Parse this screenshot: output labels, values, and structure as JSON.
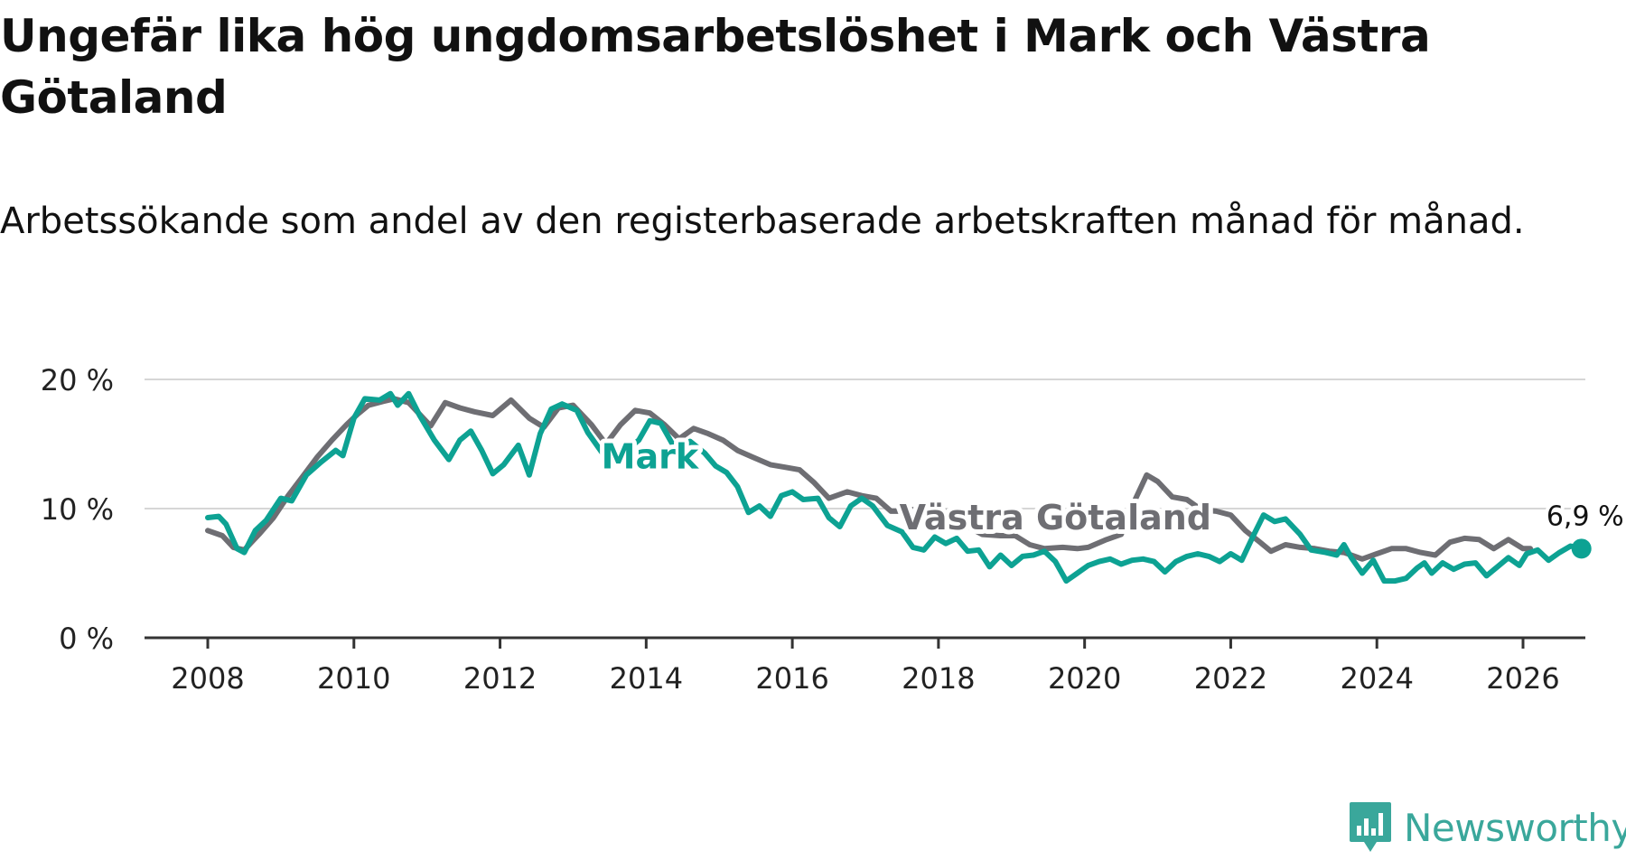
{
  "title": "Ungefär lika hög ungdomsarbetslöshet i Mark och Västra Götaland",
  "subtitle": "Arbetssökande som andel av den registerbaserade arbetskraften månad för månad.",
  "brand": {
    "name": "Newsworthy",
    "logo_icon": "newsworthy-bar-chart-icon",
    "color": "#3aa79b"
  },
  "chart_data": {
    "type": "line",
    "title": "Ungefär lika hög ungdomsarbetslöshet i Mark och Västra Götaland",
    "xlabel": "",
    "ylabel": "",
    "xlim": [
      2007.7,
      2026.9
    ],
    "ylim": [
      0,
      20
    ],
    "x_ticks": [
      2008,
      2010,
      2012,
      2014,
      2016,
      2018,
      2020,
      2022,
      2024,
      2026
    ],
    "x_tick_labels": [
      "2008",
      "2010",
      "2012",
      "2014",
      "2016",
      "2018",
      "2020",
      "2022",
      "2024",
      "2026"
    ],
    "y_ticks": [
      0,
      10,
      20
    ],
    "y_tick_labels": [
      "0 %",
      "10 %",
      "20 %"
    ],
    "grid": true,
    "end_label": "6,9 %",
    "series": [
      {
        "name": "Västra Götaland",
        "label": "Västra Götaland",
        "color": "#6e6e73",
        "label_position": [
          2019.6,
          8.4
        ],
        "points": [
          [
            2008.0,
            8.3
          ],
          [
            2008.2,
            7.9
          ],
          [
            2008.35,
            7.0
          ],
          [
            2008.5,
            6.8
          ],
          [
            2008.7,
            8.0
          ],
          [
            2008.9,
            9.3
          ],
          [
            2009.1,
            11.0
          ],
          [
            2009.3,
            12.5
          ],
          [
            2009.5,
            14.0
          ],
          [
            2009.7,
            15.3
          ],
          [
            2009.9,
            16.5
          ],
          [
            2010.05,
            17.3
          ],
          [
            2010.2,
            18.0
          ],
          [
            2010.4,
            18.3
          ],
          [
            2010.55,
            18.5
          ],
          [
            2010.75,
            18.2
          ],
          [
            2011.05,
            16.4
          ],
          [
            2011.25,
            18.2
          ],
          [
            2011.45,
            17.8
          ],
          [
            2011.65,
            17.5
          ],
          [
            2011.9,
            17.2
          ],
          [
            2012.15,
            18.4
          ],
          [
            2012.4,
            17.0
          ],
          [
            2012.6,
            16.3
          ],
          [
            2012.8,
            17.8
          ],
          [
            2013.0,
            18.0
          ],
          [
            2013.25,
            16.5
          ],
          [
            2013.45,
            15.0
          ],
          [
            2013.65,
            16.5
          ],
          [
            2013.85,
            17.6
          ],
          [
            2014.05,
            17.4
          ],
          [
            2014.25,
            16.5
          ],
          [
            2014.45,
            15.4
          ],
          [
            2014.65,
            16.2
          ],
          [
            2014.85,
            15.8
          ],
          [
            2015.05,
            15.3
          ],
          [
            2015.25,
            14.5
          ],
          [
            2015.45,
            14.0
          ],
          [
            2015.7,
            13.4
          ],
          [
            2015.9,
            13.2
          ],
          [
            2016.1,
            13.0
          ],
          [
            2016.3,
            12.0
          ],
          [
            2016.5,
            10.8
          ],
          [
            2016.75,
            11.3
          ],
          [
            2016.95,
            11.0
          ],
          [
            2017.15,
            10.8
          ],
          [
            2017.35,
            9.8
          ],
          [
            2017.55,
            9.8
          ],
          [
            2017.8,
            10.1
          ],
          [
            2018.0,
            9.9
          ],
          [
            2018.2,
            9.6
          ],
          [
            2018.4,
            8.6
          ],
          [
            2018.6,
            8.0
          ],
          [
            2018.85,
            7.9
          ],
          [
            2019.05,
            7.9
          ],
          [
            2019.25,
            7.2
          ],
          [
            2019.45,
            6.9
          ],
          [
            2019.7,
            7.0
          ],
          [
            2019.9,
            6.9
          ],
          [
            2020.05,
            7.0
          ],
          [
            2020.3,
            7.6
          ],
          [
            2020.5,
            8.0
          ],
          [
            2020.7,
            10.8
          ],
          [
            2020.85,
            12.6
          ],
          [
            2021.0,
            12.1
          ],
          [
            2021.2,
            10.9
          ],
          [
            2021.4,
            10.7
          ],
          [
            2021.6,
            9.9
          ],
          [
            2021.8,
            9.8
          ],
          [
            2022.0,
            9.5
          ],
          [
            2022.2,
            8.3
          ],
          [
            2022.4,
            7.4
          ],
          [
            2022.55,
            6.7
          ],
          [
            2022.75,
            7.2
          ],
          [
            2022.95,
            7.0
          ],
          [
            2023.15,
            6.9
          ],
          [
            2023.35,
            6.7
          ],
          [
            2023.55,
            6.6
          ],
          [
            2023.8,
            6.1
          ],
          [
            2024.0,
            6.5
          ],
          [
            2024.2,
            6.9
          ],
          [
            2024.4,
            6.9
          ],
          [
            2024.6,
            6.6
          ],
          [
            2024.8,
            6.4
          ],
          [
            2025.0,
            7.4
          ],
          [
            2025.2,
            7.7
          ],
          [
            2025.4,
            7.6
          ],
          [
            2025.6,
            6.9
          ],
          [
            2025.8,
            7.6
          ],
          [
            2026.0,
            6.9
          ],
          [
            2026.1,
            6.9
          ]
        ]
      },
      {
        "name": "Mark",
        "label": "Mark",
        "color": "#0da293",
        "label_position": [
          2014.05,
          13.1
        ],
        "points": [
          [
            2008.0,
            9.3
          ],
          [
            2008.15,
            9.4
          ],
          [
            2008.25,
            8.8
          ],
          [
            2008.4,
            6.9
          ],
          [
            2008.5,
            6.6
          ],
          [
            2008.65,
            8.3
          ],
          [
            2008.8,
            9.1
          ],
          [
            2009.0,
            10.8
          ],
          [
            2009.15,
            10.6
          ],
          [
            2009.35,
            12.6
          ],
          [
            2009.55,
            13.6
          ],
          [
            2009.75,
            14.5
          ],
          [
            2009.85,
            14.1
          ],
          [
            2010.0,
            17.0
          ],
          [
            2010.15,
            18.5
          ],
          [
            2010.35,
            18.4
          ],
          [
            2010.5,
            18.9
          ],
          [
            2010.6,
            18.0
          ],
          [
            2010.75,
            18.9
          ],
          [
            2010.9,
            17.2
          ],
          [
            2011.1,
            15.3
          ],
          [
            2011.3,
            13.8
          ],
          [
            2011.45,
            15.3
          ],
          [
            2011.6,
            16.0
          ],
          [
            2011.75,
            14.5
          ],
          [
            2011.9,
            12.7
          ],
          [
            2012.05,
            13.4
          ],
          [
            2012.25,
            14.9
          ],
          [
            2012.4,
            12.6
          ],
          [
            2012.55,
            15.8
          ],
          [
            2012.7,
            17.7
          ],
          [
            2012.85,
            18.1
          ],
          [
            2013.05,
            17.6
          ],
          [
            2013.2,
            15.9
          ],
          [
            2013.4,
            14.3
          ],
          [
            2013.55,
            13.3
          ],
          [
            2013.75,
            14.6
          ],
          [
            2013.9,
            15.3
          ],
          [
            2014.05,
            16.8
          ],
          [
            2014.2,
            16.6
          ],
          [
            2014.35,
            15.1
          ],
          [
            2014.5,
            14.4
          ],
          [
            2014.6,
            15.2
          ],
          [
            2014.8,
            14.3
          ],
          [
            2014.95,
            13.3
          ],
          [
            2015.1,
            12.8
          ],
          [
            2015.25,
            11.7
          ],
          [
            2015.4,
            9.7
          ],
          [
            2015.55,
            10.2
          ],
          [
            2015.7,
            9.4
          ],
          [
            2015.85,
            11.0
          ],
          [
            2016.0,
            11.3
          ],
          [
            2016.15,
            10.7
          ],
          [
            2016.35,
            10.8
          ],
          [
            2016.5,
            9.3
          ],
          [
            2016.65,
            8.6
          ],
          [
            2016.8,
            10.2
          ],
          [
            2016.95,
            10.8
          ],
          [
            2017.1,
            10.2
          ],
          [
            2017.3,
            8.7
          ],
          [
            2017.5,
            8.2
          ],
          [
            2017.65,
            7.0
          ],
          [
            2017.8,
            6.8
          ],
          [
            2017.95,
            7.8
          ],
          [
            2018.1,
            7.3
          ],
          [
            2018.25,
            7.7
          ],
          [
            2018.4,
            6.7
          ],
          [
            2018.55,
            6.8
          ],
          [
            2018.7,
            5.5
          ],
          [
            2018.85,
            6.4
          ],
          [
            2019.0,
            5.6
          ],
          [
            2019.15,
            6.3
          ],
          [
            2019.3,
            6.4
          ],
          [
            2019.45,
            6.7
          ],
          [
            2019.6,
            5.9
          ],
          [
            2019.75,
            4.4
          ],
          [
            2019.9,
            5.0
          ],
          [
            2020.05,
            5.6
          ],
          [
            2020.2,
            5.9
          ],
          [
            2020.35,
            6.1
          ],
          [
            2020.5,
            5.7
          ],
          [
            2020.65,
            6.0
          ],
          [
            2020.8,
            6.1
          ],
          [
            2020.95,
            5.9
          ],
          [
            2021.1,
            5.1
          ],
          [
            2021.25,
            5.9
          ],
          [
            2021.4,
            6.3
          ],
          [
            2021.55,
            6.5
          ],
          [
            2021.7,
            6.3
          ],
          [
            2021.85,
            5.9
          ],
          [
            2022.0,
            6.5
          ],
          [
            2022.15,
            6.0
          ],
          [
            2022.3,
            7.8
          ],
          [
            2022.45,
            9.5
          ],
          [
            2022.6,
            9.0
          ],
          [
            2022.75,
            9.2
          ],
          [
            2022.95,
            8.0
          ],
          [
            2023.1,
            6.8
          ],
          [
            2023.3,
            6.6
          ],
          [
            2023.45,
            6.4
          ],
          [
            2023.55,
            7.2
          ],
          [
            2023.65,
            6.2
          ],
          [
            2023.8,
            5.0
          ],
          [
            2023.95,
            6.0
          ],
          [
            2024.1,
            4.4
          ],
          [
            2024.25,
            4.4
          ],
          [
            2024.4,
            4.6
          ],
          [
            2024.55,
            5.4
          ],
          [
            2024.65,
            5.8
          ],
          [
            2024.75,
            5.0
          ],
          [
            2024.9,
            5.8
          ],
          [
            2025.05,
            5.3
          ],
          [
            2025.2,
            5.7
          ],
          [
            2025.35,
            5.8
          ],
          [
            2025.5,
            4.8
          ],
          [
            2025.65,
            5.5
          ],
          [
            2025.8,
            6.2
          ],
          [
            2025.95,
            5.6
          ],
          [
            2026.05,
            6.5
          ],
          [
            2026.2,
            6.8
          ],
          [
            2026.35,
            6.0
          ],
          [
            2026.5,
            6.6
          ],
          [
            2026.65,
            7.1
          ],
          [
            2026.8,
            6.9
          ]
        ]
      }
    ]
  }
}
